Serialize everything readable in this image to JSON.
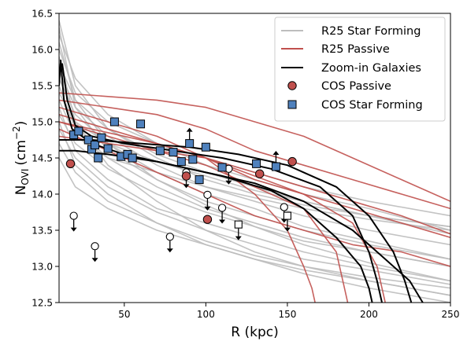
{
  "chart_data": {
    "type": "scatter",
    "xlabel": "R (kpc)",
    "ylabel_main": "N",
    "ylabel_sub": "OVI",
    "ylabel_unit": "(cm",
    "ylabel_exp": "−2",
    "ylabel_close": ")",
    "xlim": [
      10,
      250
    ],
    "ylim": [
      12.5,
      16.5
    ],
    "xticks": [
      50,
      100,
      150,
      200,
      250
    ],
    "yticks": [
      12.5,
      13.0,
      13.5,
      14.0,
      14.5,
      15.0,
      15.5,
      16.0,
      16.5
    ],
    "ytick_labels": [
      "12.5",
      "13.0",
      "13.5",
      "14.0",
      "14.5",
      "15.0",
      "15.5",
      "16.0",
      "16.5"
    ],
    "legend": {
      "placement": "top-right",
      "entries": [
        {
          "label": "R25 Star Forming",
          "kind": "line",
          "color": "#bdbdbd"
        },
        {
          "label": "R25 Passive",
          "kind": "line",
          "color": "#c0504d"
        },
        {
          "label": "Zoom-in Galaxies",
          "kind": "line",
          "color": "#000000"
        },
        {
          "label": "COS Passive",
          "kind": "circle",
          "color": "#c0504d"
        },
        {
          "label": "COS Star Forming",
          "kind": "square",
          "color": "#4f81bd"
        }
      ]
    },
    "colors": {
      "sf": "#bdbdbd",
      "passive": "#c0504d",
      "zoom": "#000000",
      "cos_passive": "#c0504d",
      "cos_sf": "#4f81bd"
    },
    "series": {
      "r25_star_forming": [
        {
          "x": [
            10,
            20,
            40,
            70,
            100,
            130,
            160,
            200,
            250
          ],
          "y": [
            16.3,
            15.2,
            14.6,
            14.2,
            13.9,
            13.7,
            13.5,
            13.3,
            13.1
          ]
        },
        {
          "x": [
            10,
            20,
            40,
            70,
            100,
            130,
            160,
            200,
            250
          ],
          "y": [
            16.0,
            15.4,
            15.0,
            14.7,
            14.4,
            14.2,
            14.0,
            13.8,
            13.5
          ]
        },
        {
          "x": [
            10,
            20,
            40,
            70,
            100,
            130,
            160,
            200,
            250
          ],
          "y": [
            15.7,
            15.2,
            14.8,
            14.4,
            14.1,
            13.9,
            13.7,
            13.5,
            13.3
          ]
        },
        {
          "x": [
            10,
            20,
            40,
            70,
            100,
            130,
            160,
            200,
            250
          ],
          "y": [
            15.5,
            14.9,
            14.5,
            14.1,
            13.8,
            13.6,
            13.4,
            13.2,
            13.0
          ]
        },
        {
          "x": [
            10,
            20,
            40,
            70,
            100,
            130,
            160,
            200,
            250
          ],
          "y": [
            15.2,
            14.6,
            14.2,
            13.8,
            13.6,
            13.4,
            13.2,
            13.0,
            12.8
          ]
        },
        {
          "x": [
            10,
            20,
            40,
            70,
            100,
            130,
            160,
            200,
            250
          ],
          "y": [
            15.9,
            15.0,
            14.4,
            13.9,
            13.5,
            13.2,
            13.0,
            12.8,
            12.6
          ]
        },
        {
          "x": [
            10,
            20,
            40,
            70,
            100,
            130,
            160,
            200,
            250
          ],
          "y": [
            15.0,
            14.4,
            14.0,
            13.6,
            13.3,
            13.1,
            12.9,
            12.7,
            12.5
          ]
        },
        {
          "x": [
            10,
            20,
            40,
            70,
            100,
            130,
            160,
            200,
            250
          ],
          "y": [
            15.3,
            14.8,
            14.5,
            14.3,
            14.1,
            13.95,
            13.8,
            13.65,
            13.5
          ]
        },
        {
          "x": [
            10,
            20,
            40,
            70,
            100,
            130,
            160,
            200,
            250
          ],
          "y": [
            16.2,
            15.6,
            15.1,
            14.7,
            14.5,
            14.3,
            14.1,
            13.9,
            13.7
          ]
        },
        {
          "x": [
            10,
            20,
            40,
            70,
            100,
            130,
            160,
            200,
            250
          ],
          "y": [
            14.7,
            14.3,
            13.9,
            13.6,
            13.35,
            13.15,
            13.0,
            12.85,
            12.7
          ]
        },
        {
          "x": [
            10,
            20,
            40,
            70,
            100,
            130,
            160,
            200,
            250
          ],
          "y": [
            15.6,
            15.1,
            14.7,
            14.3,
            14.0,
            13.8,
            13.55,
            13.35,
            13.1
          ]
        },
        {
          "x": [
            10,
            20,
            40,
            70,
            100,
            130,
            160,
            200,
            250
          ],
          "y": [
            14.9,
            14.5,
            14.1,
            13.75,
            13.5,
            13.3,
            13.1,
            12.95,
            12.75
          ]
        },
        {
          "x": [
            10,
            20,
            40,
            70,
            100,
            130,
            160,
            200,
            250
          ],
          "y": [
            15.4,
            15.0,
            14.7,
            14.45,
            14.25,
            14.05,
            13.9,
            13.7,
            13.55
          ]
        },
        {
          "x": [
            10,
            20,
            40,
            70,
            100,
            130,
            160,
            200,
            250
          ],
          "y": [
            16.1,
            15.3,
            14.7,
            14.2,
            13.85,
            13.55,
            13.3,
            13.05,
            12.8
          ]
        },
        {
          "x": [
            10,
            20,
            40,
            70,
            100,
            130,
            160,
            200,
            250
          ],
          "y": [
            14.5,
            14.1,
            13.8,
            13.5,
            13.3,
            13.1,
            12.95,
            12.8,
            12.6
          ]
        },
        {
          "x": [
            10,
            20,
            40,
            70,
            100,
            130,
            160,
            200,
            250
          ],
          "y": [
            15.8,
            15.3,
            14.9,
            14.55,
            14.3,
            14.1,
            13.9,
            13.7,
            13.45
          ]
        },
        {
          "x": [
            10,
            20,
            40,
            70,
            100,
            130,
            160,
            200,
            250
          ],
          "y": [
            15.1,
            14.7,
            14.35,
            14.0,
            13.75,
            13.55,
            13.35,
            13.2,
            13.0
          ]
        },
        {
          "x": [
            10,
            20,
            40,
            70,
            100,
            130,
            160,
            200,
            250
          ],
          "y": [
            16.4,
            15.5,
            14.9,
            14.5,
            14.2,
            14.0,
            13.85,
            13.7,
            13.55
          ]
        }
      ],
      "r25_passive": [
        {
          "x": [
            10,
            40,
            70,
            100,
            130,
            160,
            190,
            220,
            250
          ],
          "y": [
            15.3,
            15.2,
            15.1,
            14.9,
            14.6,
            14.4,
            14.2,
            14.0,
            13.8
          ]
        },
        {
          "x": [
            10,
            40,
            70,
            100,
            130,
            160,
            190,
            220,
            250
          ],
          "y": [
            15.1,
            14.9,
            14.7,
            14.5,
            14.2,
            14.0,
            13.8,
            13.6,
            13.4
          ]
        },
        {
          "x": [
            10,
            40,
            70,
            100,
            130,
            160,
            190,
            220,
            250
          ],
          "y": [
            14.9,
            14.6,
            14.3,
            14.0,
            13.7,
            13.5,
            13.3,
            13.2,
            13.0
          ]
        },
        {
          "x": [
            10,
            40,
            70,
            100,
            130,
            150,
            160,
            165,
            167
          ],
          "y": [
            15.2,
            15.0,
            14.8,
            14.5,
            14.0,
            13.5,
            13.0,
            12.7,
            12.5
          ]
        },
        {
          "x": [
            10,
            40,
            70,
            100,
            130,
            160,
            180,
            185,
            187
          ],
          "y": [
            15.0,
            14.8,
            14.6,
            14.4,
            14.1,
            13.8,
            13.2,
            12.7,
            12.5
          ]
        },
        {
          "x": [
            10,
            40,
            70,
            100,
            130,
            160,
            190,
            220,
            250
          ],
          "y": [
            15.4,
            15.35,
            15.3,
            15.2,
            15.0,
            14.8,
            14.5,
            14.2,
            13.9
          ]
        },
        {
          "x": [
            10,
            40,
            70,
            100,
            130,
            160,
            190,
            220,
            250
          ],
          "y": [
            14.8,
            14.7,
            14.6,
            14.5,
            14.3,
            14.1,
            13.9,
            13.7,
            13.45
          ]
        },
        {
          "x": [
            10,
            40,
            70,
            100,
            130,
            160,
            190,
            205,
            210
          ],
          "y": [
            15.0,
            14.85,
            14.7,
            14.5,
            14.25,
            14.0,
            13.6,
            13.0,
            12.5
          ]
        }
      ],
      "zoom_in_galaxies": [
        {
          "x": [
            10,
            12,
            15,
            20,
            30,
            50,
            80,
            110,
            140,
            170,
            190,
            200,
            205,
            208
          ],
          "y": [
            15.7,
            15.8,
            15.3,
            14.95,
            14.8,
            14.7,
            14.6,
            14.5,
            14.35,
            14.1,
            13.7,
            13.2,
            12.8,
            12.5
          ]
        },
        {
          "x": [
            10,
            30,
            60,
            90,
            120,
            150,
            180,
            200,
            215,
            222,
            226
          ],
          "y": [
            14.75,
            14.75,
            14.7,
            14.65,
            14.55,
            14.4,
            14.1,
            13.7,
            13.2,
            12.8,
            12.5
          ]
        },
        {
          "x": [
            10,
            20,
            40,
            70,
            100,
            130,
            160,
            190,
            210,
            225,
            233
          ],
          "y": [
            14.6,
            14.6,
            14.55,
            14.45,
            14.3,
            14.15,
            13.9,
            13.5,
            13.1,
            12.8,
            12.5
          ]
        },
        {
          "x": [
            10,
            11,
            13,
            18,
            30,
            50,
            80,
            110,
            140,
            160,
            180,
            195,
            200,
            202
          ],
          "y": [
            15.5,
            15.85,
            15.3,
            14.9,
            14.7,
            14.55,
            14.4,
            14.25,
            14.05,
            13.8,
            13.4,
            13.0,
            12.7,
            12.5
          ]
        }
      ]
    },
    "cos_star_forming": [
      {
        "x": 19,
        "y": 14.82
      },
      {
        "x": 22,
        "y": 14.87
      },
      {
        "x": 28,
        "y": 14.75
      },
      {
        "x": 30,
        "y": 14.62
      },
      {
        "x": 32,
        "y": 14.68
      },
      {
        "x": 34,
        "y": 14.5
      },
      {
        "x": 36,
        "y": 14.78
      },
      {
        "x": 40,
        "y": 14.63
      },
      {
        "x": 44,
        "y": 15.0
      },
      {
        "x": 48,
        "y": 14.52
      },
      {
        "x": 52,
        "y": 14.55
      },
      {
        "x": 55,
        "y": 14.5
      },
      {
        "x": 60,
        "y": 14.97
      },
      {
        "x": 72,
        "y": 14.6
      },
      {
        "x": 80,
        "y": 14.58
      },
      {
        "x": 85,
        "y": 14.45
      },
      {
        "x": 90,
        "y": 14.7
      },
      {
        "x": 92,
        "y": 14.48
      },
      {
        "x": 96,
        "y": 14.2
      },
      {
        "x": 100,
        "y": 14.65
      },
      {
        "x": 110,
        "y": 14.37
      },
      {
        "x": 131,
        "y": 14.42
      },
      {
        "x": 143,
        "y": 14.38
      }
    ],
    "cos_passive": [
      {
        "x": 17,
        "y": 14.42
      },
      {
        "x": 88,
        "y": 14.25
      },
      {
        "x": 101,
        "y": 13.65
      },
      {
        "x": 133,
        "y": 14.28
      },
      {
        "x": 153,
        "y": 14.45
      }
    ],
    "cos_upper_limits": [
      {
        "x": 19,
        "y": 13.7,
        "shape": "circle"
      },
      {
        "x": 32,
        "y": 13.28,
        "shape": "circle"
      },
      {
        "x": 78,
        "y": 13.41,
        "shape": "circle"
      },
      {
        "x": 88,
        "y": 14.3,
        "shape": "circle"
      },
      {
        "x": 101,
        "y": 13.99,
        "shape": "circle"
      },
      {
        "x": 110,
        "y": 13.81,
        "shape": "circle"
      },
      {
        "x": 114,
        "y": 14.35,
        "shape": "circle"
      },
      {
        "x": 148,
        "y": 13.82,
        "shape": "circle"
      },
      {
        "x": 120,
        "y": 13.58,
        "shape": "square"
      },
      {
        "x": 150,
        "y": 13.7,
        "shape": "square"
      }
    ],
    "cos_lower_limits": [
      {
        "x": 143,
        "y": 14.38
      },
      {
        "x": 90,
        "y": 14.7
      }
    ]
  }
}
